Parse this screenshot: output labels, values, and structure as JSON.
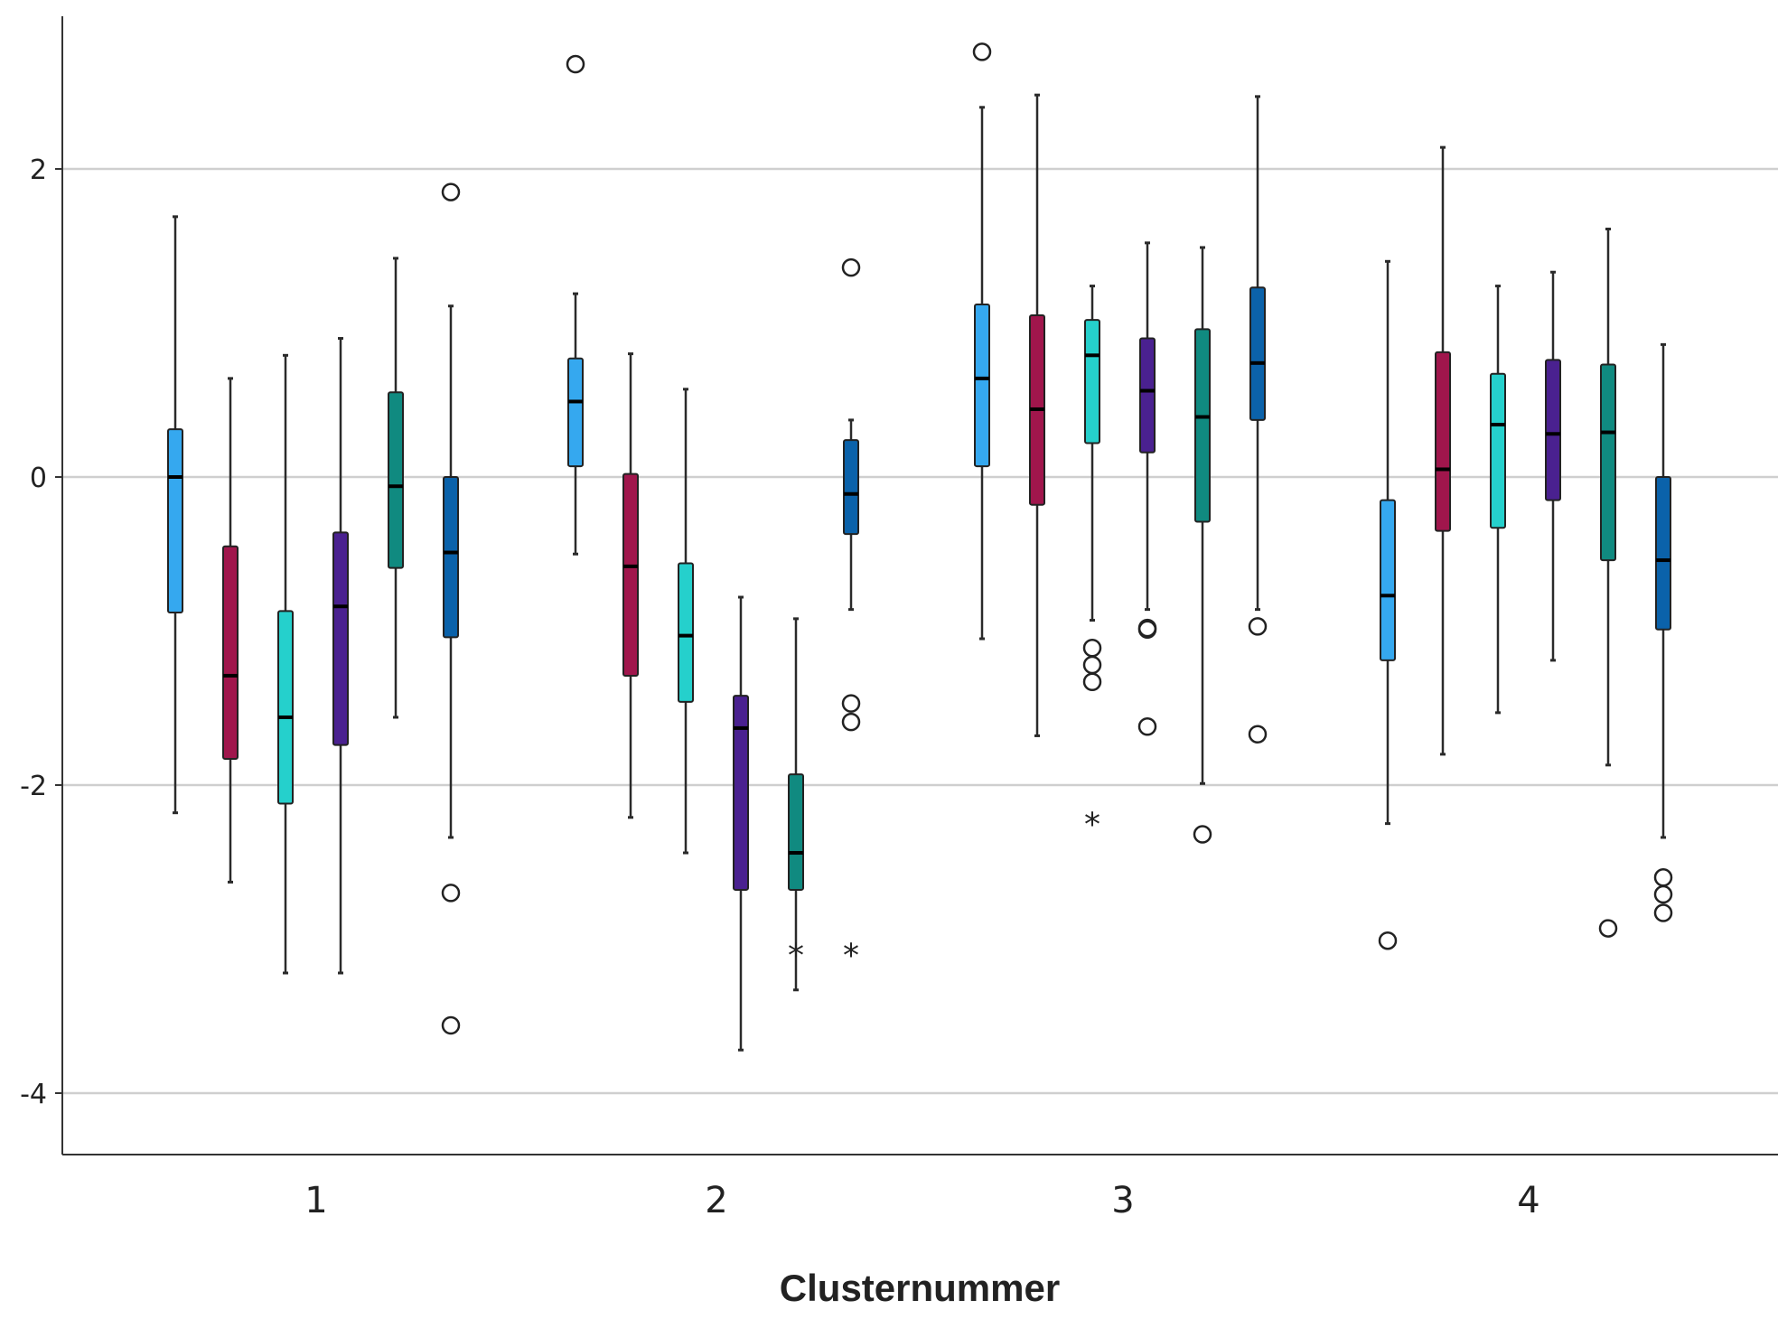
{
  "chart_data": {
    "type": "boxplot",
    "title": "",
    "xlabel": "Clusternummer",
    "ylabel": "",
    "ylim": [
      -4.4,
      3.0
    ],
    "y_ticks": [
      2,
      0,
      -2,
      -4
    ],
    "y_tick_labels": [
      "2",
      "0",
      "-2",
      "-4"
    ],
    "grid": "horizontal",
    "categories": [
      "1",
      "2",
      "3",
      "4"
    ],
    "series": [
      {
        "color": "#35a8ef",
        "boxes": [
          {
            "min": -2.18,
            "q1": -0.88,
            "median": 0.0,
            "q3": 0.31,
            "max": 1.69,
            "outliers": [],
            "extremes": []
          },
          {
            "min": -0.5,
            "q1": 0.07,
            "median": 0.49,
            "q3": 0.77,
            "max": 1.19,
            "outliers": [
              2.68
            ],
            "extremes": []
          },
          {
            "min": -1.05,
            "q1": 0.07,
            "median": 0.64,
            "q3": 1.12,
            "max": 2.4,
            "outliers": [
              2.76
            ],
            "extremes": []
          },
          {
            "min": -2.25,
            "q1": -1.19,
            "median": -0.77,
            "q3": -0.15,
            "max": 1.4,
            "outliers": [
              -3.01
            ],
            "extremes": []
          }
        ]
      },
      {
        "color": "#a0164c",
        "boxes": [
          {
            "min": -2.63,
            "q1": -1.83,
            "median": -1.29,
            "q3": -0.45,
            "max": 0.64,
            "outliers": [],
            "extremes": []
          },
          {
            "min": -2.21,
            "q1": -1.29,
            "median": -0.58,
            "q3": 0.02,
            "max": 0.8,
            "outliers": [],
            "extremes": []
          },
          {
            "min": -1.68,
            "q1": -0.18,
            "median": 0.44,
            "q3": 1.05,
            "max": 2.48,
            "outliers": [],
            "extremes": []
          },
          {
            "min": -1.8,
            "q1": -0.35,
            "median": 0.05,
            "q3": 0.81,
            "max": 2.14,
            "outliers": [],
            "extremes": []
          }
        ]
      },
      {
        "color": "#25d0cc",
        "boxes": [
          {
            "min": -3.22,
            "q1": -2.12,
            "median": -1.56,
            "q3": -0.87,
            "max": 0.79,
            "outliers": [],
            "extremes": []
          },
          {
            "min": -2.44,
            "q1": -1.46,
            "median": -1.03,
            "q3": -0.56,
            "max": 0.57,
            "outliers": [],
            "extremes": []
          },
          {
            "min": -0.93,
            "q1": 0.22,
            "median": 0.79,
            "q3": 1.02,
            "max": 1.24,
            "outliers": [
              -1.11,
              -1.22,
              -1.33
            ],
            "extremes": [
              -2.22
            ]
          },
          {
            "min": -1.53,
            "q1": -0.33,
            "median": 0.34,
            "q3": 0.67,
            "max": 1.24,
            "outliers": [],
            "extremes": []
          }
        ]
      },
      {
        "color": "#4a2190",
        "boxes": [
          {
            "min": -3.22,
            "q1": -1.74,
            "median": -0.84,
            "q3": -0.36,
            "max": 0.9,
            "outliers": [],
            "extremes": []
          },
          {
            "min": -3.72,
            "q1": -2.68,
            "median": -1.63,
            "q3": -1.42,
            "max": -0.78,
            "outliers": [],
            "extremes": []
          },
          {
            "min": -0.86,
            "q1": 0.16,
            "median": 0.56,
            "q3": 0.9,
            "max": 1.52,
            "outliers": [
              -0.98,
              -0.99,
              -1.62
            ],
            "extremes": []
          },
          {
            "min": -1.19,
            "q1": -0.15,
            "median": 0.28,
            "q3": 0.76,
            "max": 1.33,
            "outliers": [],
            "extremes": []
          }
        ]
      },
      {
        "color": "#108a80",
        "boxes": [
          {
            "min": -1.56,
            "q1": -0.59,
            "median": -0.06,
            "q3": 0.55,
            "max": 1.42,
            "outliers": [],
            "extremes": []
          },
          {
            "min": -3.33,
            "q1": -2.68,
            "median": -2.44,
            "q3": -1.93,
            "max": -0.92,
            "outliers": [],
            "extremes": [
              -3.07
            ]
          },
          {
            "min": -1.99,
            "q1": -0.29,
            "median": 0.39,
            "q3": 0.96,
            "max": 1.49,
            "outliers": [
              -2.32
            ],
            "extremes": []
          },
          {
            "min": -1.87,
            "q1": -0.54,
            "median": 0.29,
            "q3": 0.73,
            "max": 1.61,
            "outliers": [
              -2.93
            ],
            "extremes": []
          }
        ]
      },
      {
        "color": "#0b62aa",
        "boxes": [
          {
            "min": -2.34,
            "q1": -1.04,
            "median": -0.49,
            "q3": 0.0,
            "max": 1.11,
            "outliers": [
              1.85,
              -2.7,
              -3.56
            ],
            "extremes": []
          },
          {
            "min": -0.86,
            "q1": -0.37,
            "median": -0.11,
            "q3": 0.24,
            "max": 0.37,
            "outliers": [
              1.36,
              -1.47,
              -1.59
            ],
            "extremes": [
              -3.07
            ]
          },
          {
            "min": -0.86,
            "q1": 0.37,
            "median": 0.74,
            "q3": 1.23,
            "max": 2.47,
            "outliers": [
              -0.97,
              -1.67
            ],
            "extremes": []
          },
          {
            "min": -2.34,
            "q1": -0.99,
            "median": -0.54,
            "q3": 0.0,
            "max": 0.86,
            "outliers": [
              -2.6,
              -2.71,
              -2.83
            ],
            "extremes": []
          }
        ]
      }
    ]
  }
}
